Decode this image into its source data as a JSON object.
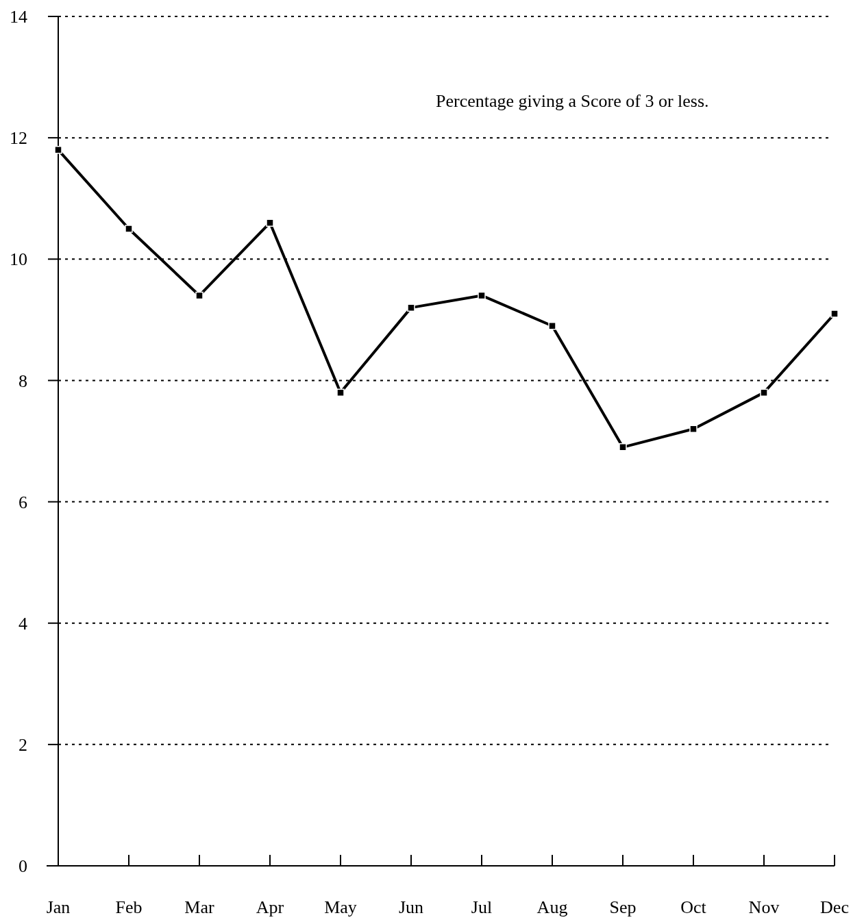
{
  "chart_data": {
    "type": "line",
    "categories": [
      "Jan",
      "Feb",
      "Mar",
      "Apr",
      "May",
      "Jun",
      "Jul",
      "Aug",
      "Sep",
      "Oct",
      "Nov",
      "Dec"
    ],
    "series": [
      {
        "color": "#000000",
        "values": [
          11.8,
          10.5,
          9.4,
          10.6,
          7.8,
          9.2,
          9.4,
          8.9,
          6.9,
          7.2,
          7.8,
          9.1
        ]
      }
    ],
    "ylim": [
      0,
      14
    ],
    "yticks": [
      0,
      2,
      4,
      6,
      8,
      10,
      12,
      14
    ],
    "grid": "y",
    "marker": "square",
    "line_style": "solid",
    "annotations": [
      "Percentage giving a Score of 3 or less."
    ]
  }
}
